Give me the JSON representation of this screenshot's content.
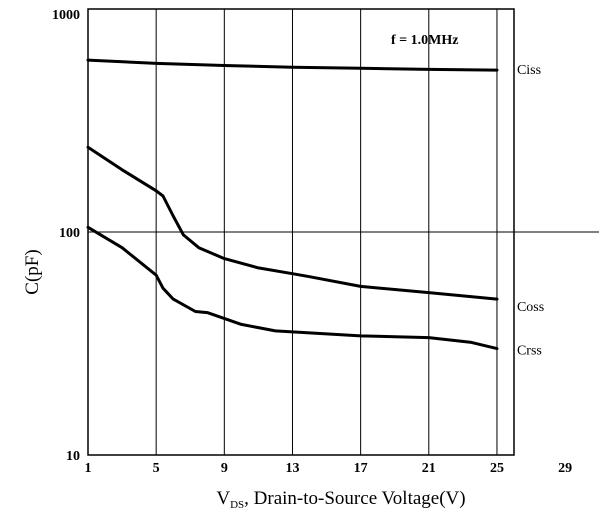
{
  "chart_data": {
    "type": "line",
    "annotation": "f = 1.0MHz",
    "xlabel_parts": {
      "pre": "V",
      "sub": "DS",
      "post": ", Drain-to-Source Voltage(V)"
    },
    "ylabel": "C(pF)",
    "x_ticks": [
      1,
      5,
      9,
      13,
      17,
      21,
      25,
      29
    ],
    "y_ticks": [
      10,
      100,
      1000
    ],
    "xlim": [
      1,
      29
    ],
    "ylim": [
      10,
      1000
    ],
    "y_scale": "log",
    "grid": true,
    "series": [
      {
        "name": "Ciss",
        "x": [
          1,
          5,
          9,
          13,
          17,
          21,
          25
        ],
        "y": [
          590,
          570,
          558,
          548,
          542,
          536,
          532
        ]
      },
      {
        "name": "Coss",
        "x": [
          1,
          3,
          5,
          5.4,
          6,
          6.6,
          7.5,
          9,
          11,
          13,
          14,
          17,
          21,
          25
        ],
        "y": [
          240,
          190,
          153,
          145,
          118,
          97,
          85,
          76,
          69,
          65,
          63,
          57,
          53.5,
          50
        ]
      },
      {
        "name": "Crss",
        "x": [
          1,
          3,
          5,
          5.4,
          6,
          7.3,
          8,
          10,
          12,
          17,
          21,
          23.5,
          25
        ],
        "y": [
          105,
          85,
          64,
          56,
          50,
          44,
          43.5,
          38.5,
          36,
          34.2,
          33.6,
          32,
          30
        ]
      }
    ]
  }
}
